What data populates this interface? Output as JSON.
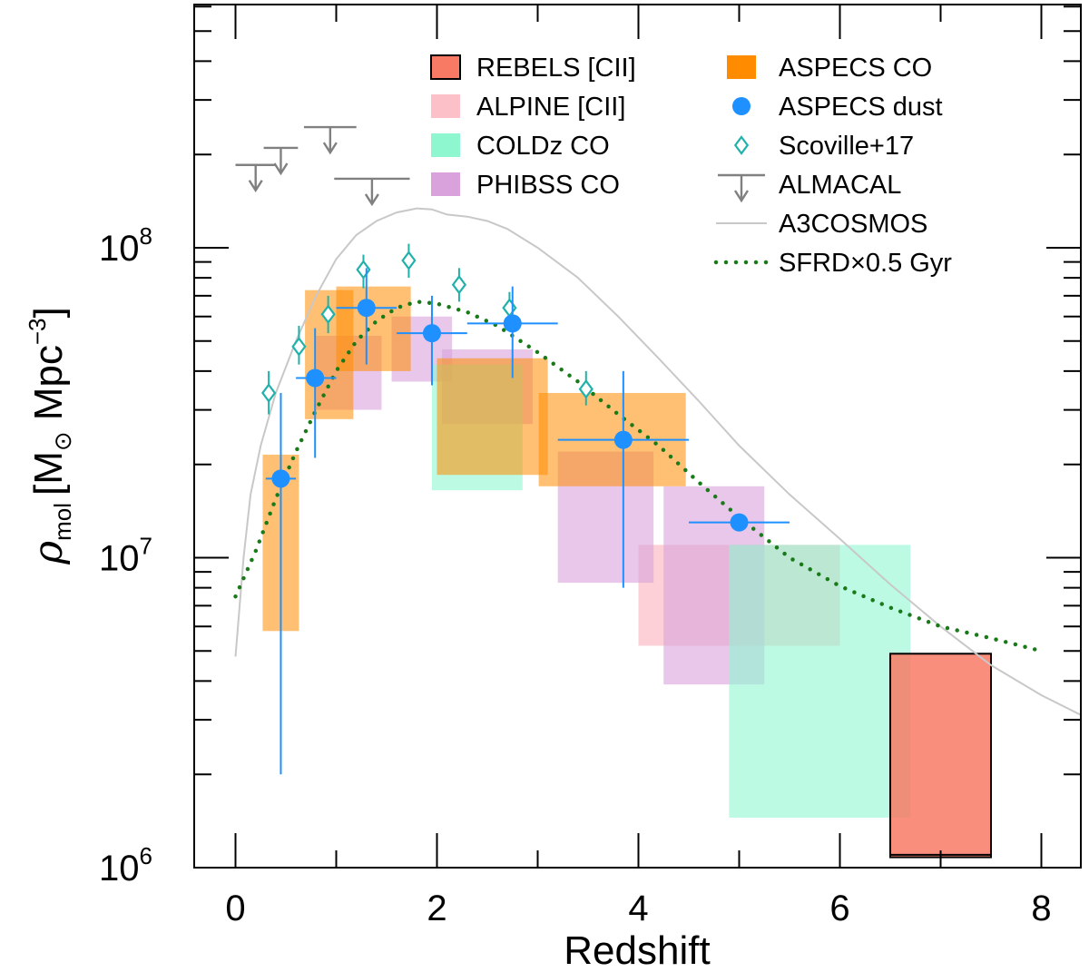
{
  "chart_data": {
    "type": "scatter",
    "title": "",
    "xlabel": "Redshift",
    "ylabel": "ρ_mol [M⊙ Mpc⁻³]",
    "ylabel_parts": {
      "rho": "ρ",
      "rho_sub": "mol",
      "bracket_open": "[M",
      "sun": "⊙",
      "mpc": "Mpc",
      "exp": "−3",
      "bracket_close": "]"
    },
    "x_scale": "linear",
    "y_scale": "log",
    "xlim": [
      -0.5,
      8.4
    ],
    "ylim": [
      1000000,
      700000000
    ],
    "x_ticks": [
      0,
      2,
      4,
      6,
      8
    ],
    "x_tick_labels": [
      "0",
      "2",
      "4",
      "6",
      "8"
    ],
    "y_ticks": [
      1000000,
      10000000,
      100000000
    ],
    "y_tick_labels": [
      {
        "base": "10",
        "exp": "6"
      },
      {
        "base": "10",
        "exp": "7"
      },
      {
        "base": "10",
        "exp": "8"
      }
    ],
    "legend": [
      {
        "label": "REBELS [CII]",
        "marker": "rect",
        "color": "#f87a65",
        "edge": "#000000"
      },
      {
        "label": "ALPINE [CII]",
        "marker": "rect",
        "color": "#fbc0c8"
      },
      {
        "label": "COLDz CO",
        "marker": "rect",
        "color": "#8ff7d0"
      },
      {
        "label": "PHIBSS CO",
        "marker": "rect",
        "color": "#d9a2dc"
      },
      {
        "label": "ASPECS CO",
        "marker": "rect",
        "color": "#ff8c00"
      },
      {
        "label": "ASPECS dust",
        "marker": "circle",
        "color": "#1e90ff"
      },
      {
        "label": "Scoville+17",
        "marker": "diamond",
        "color": "#20b2aa"
      },
      {
        "label": "ALMACAL",
        "marker": "upper-limit",
        "color": "#808080"
      },
      {
        "label": "A3COSMOS",
        "marker": "line",
        "color": "#c8c8c8"
      },
      {
        "label": "SFRD×0.5 Gyr",
        "marker": "dotted",
        "color": "#1a7a1a"
      }
    ],
    "series": [
      {
        "name": "ALPINE [CII]",
        "kind": "boxes",
        "color": "#fbc0c8",
        "opacity": 0.75,
        "boxes": [
          {
            "x": [
              4.0,
              6.0
            ],
            "y": [
              5200000,
              11000000
            ]
          }
        ]
      },
      {
        "name": "PHIBSS CO",
        "kind": "boxes",
        "color": "#d9a2dc",
        "opacity": 0.6,
        "boxes": [
          {
            "x": [
              0.8,
              1.45
            ],
            "y": [
              30000000,
              52000000
            ]
          },
          {
            "x": [
              1.55,
              2.15
            ],
            "y": [
              37000000,
              60000000
            ]
          },
          {
            "x": [
              2.05,
              2.95
            ],
            "y": [
              27000000,
              47000000
            ]
          },
          {
            "x": [
              3.2,
              4.15
            ],
            "y": [
              8300000,
              22000000
            ]
          },
          {
            "x": [
              4.25,
              5.25
            ],
            "y": [
              3900000,
              17000000
            ]
          }
        ]
      },
      {
        "name": "COLDz CO",
        "kind": "boxes",
        "color": "#8ff7d0",
        "opacity": 0.6,
        "boxes": [
          {
            "x": [
              1.95,
              2.85
            ],
            "y": [
              16500000,
              42000000
            ]
          },
          {
            "x": [
              4.9,
              6.7
            ],
            "y": [
              1450000,
              11000000
            ]
          }
        ]
      },
      {
        "name": "ASPECS CO",
        "kind": "boxes",
        "color": "#ff8c00",
        "opacity": 0.55,
        "boxes": [
          {
            "x": [
              0.27,
              0.63
            ],
            "y": [
              5800000,
              21500000
            ]
          },
          {
            "x": [
              0.69,
              1.17
            ],
            "y": [
              28000000,
              73000000
            ]
          },
          {
            "x": [
              1.0,
              1.74
            ],
            "y": [
              40000000,
              75000000
            ]
          },
          {
            "x": [
              2.0,
              3.1
            ],
            "y": [
              18500000,
              44000000
            ]
          },
          {
            "x": [
              3.01,
              4.47
            ],
            "y": [
              17000000,
              34000000
            ]
          }
        ]
      },
      {
        "name": "REBELS [CII]",
        "kind": "boxes",
        "color": "#f87a65",
        "opacity": 0.85,
        "edge": "#000000",
        "boxes": [
          {
            "x": [
              6.5,
              7.5
            ],
            "y": [
              1080000,
              4900000
            ],
            "inner_line": 1100000
          }
        ]
      },
      {
        "name": "A3COSMOS",
        "kind": "line",
        "color": "#c8c8c8",
        "x": [
          0.0,
          0.08,
          0.15,
          0.25,
          0.4,
          0.6,
          0.8,
          1.0,
          1.2,
          1.4,
          1.6,
          1.8,
          1.95,
          2.1,
          2.3,
          2.5,
          2.7,
          3.0,
          3.4,
          3.8,
          4.2,
          4.6,
          5.0,
          5.5,
          6.0,
          6.5,
          7.0,
          7.5,
          8.0,
          8.4
        ],
        "y": [
          4800000,
          10000000,
          16000000,
          23000000,
          34000000,
          50000000,
          70000000,
          92000000,
          110000000,
          122000000,
          130000000,
          134000000,
          133000000,
          128000000,
          126000000,
          122000000,
          115000000,
          100000000,
          80000000,
          60000000,
          44000000,
          32000000,
          23000000,
          16000000,
          11500000,
          8200000,
          6000000,
          4500000,
          3600000,
          3100000
        ]
      },
      {
        "name": "SFRD×0.5 Gyr",
        "kind": "dotted",
        "color": "#1a7a1a",
        "x": [
          0.0,
          0.2,
          0.4,
          0.6,
          0.8,
          1.0,
          1.2,
          1.4,
          1.6,
          1.8,
          2.0,
          2.3,
          2.6,
          3.0,
          3.4,
          3.8,
          4.2,
          4.6,
          5.0,
          5.5,
          6.0,
          6.5,
          7.0,
          7.5,
          8.0
        ],
        "y": [
          7500000,
          10500000,
          15500000,
          22000000,
          30000000,
          40000000,
          50000000,
          58000000,
          64000000,
          67000000,
          66000000,
          62000000,
          56000000,
          46000000,
          37000000,
          29000000,
          23000000,
          17500000,
          13500000,
          10000000,
          8100000,
          6900000,
          6000000,
          5500000,
          5000000
        ]
      },
      {
        "name": "Scoville+17",
        "kind": "points",
        "marker": "diamond",
        "color": "#20b2aa",
        "points": [
          {
            "x": 0.33,
            "y": 34000000,
            "ylo": 29000000,
            "yhi": 40000000
          },
          {
            "x": 0.63,
            "y": 48000000,
            "ylo": 42000000,
            "yhi": 56000000
          },
          {
            "x": 0.92,
            "y": 61000000,
            "ylo": 53000000,
            "yhi": 70000000
          },
          {
            "x": 1.27,
            "y": 85000000,
            "ylo": 74000000,
            "yhi": 95000000
          },
          {
            "x": 1.72,
            "y": 91000000,
            "ylo": 80000000,
            "yhi": 103000000
          },
          {
            "x": 2.22,
            "y": 76000000,
            "ylo": 67000000,
            "yhi": 86000000
          },
          {
            "x": 2.72,
            "y": 64000000,
            "ylo": 57000000,
            "yhi": 72000000
          },
          {
            "x": 3.48,
            "y": 35000000,
            "ylo": 31000000,
            "yhi": 40000000
          }
        ]
      },
      {
        "name": "ASPECS dust",
        "kind": "points",
        "marker": "circle",
        "color": "#1e90ff",
        "points": [
          {
            "x": 0.45,
            "y": 18000000,
            "xlo": 0.3,
            "xhi": 0.6,
            "ylo": 2000000,
            "yhi": 34000000
          },
          {
            "x": 0.79,
            "y": 38000000,
            "xlo": 0.6,
            "xhi": 1.0,
            "ylo": 21000000,
            "yhi": 55000000
          },
          {
            "x": 1.3,
            "y": 64000000,
            "xlo": 1.0,
            "xhi": 1.6,
            "ylo": 42000000,
            "yhi": 86000000
          },
          {
            "x": 1.95,
            "y": 53000000,
            "xlo": 1.6,
            "xhi": 2.3,
            "ylo": 36000000,
            "yhi": 70000000
          },
          {
            "x": 2.75,
            "y": 57000000,
            "xlo": 2.3,
            "xhi": 3.2,
            "ylo": 38000000,
            "yhi": 75000000
          },
          {
            "x": 3.85,
            "y": 24000000,
            "xlo": 3.2,
            "xhi": 4.5,
            "ylo": 8000000,
            "yhi": 40000000
          },
          {
            "x": 5.0,
            "y": 13000000,
            "xlo": 4.5,
            "xhi": 5.5,
            "ylo": 13000000,
            "yhi": 13000000
          }
        ]
      },
      {
        "name": "ALMACAL",
        "kind": "upper-limits",
        "color": "#808080",
        "limits": [
          {
            "x": 0.2,
            "xlo": 0.0,
            "xhi": 0.4,
            "y": 185000000
          },
          {
            "x": 0.44,
            "xlo": 0.28,
            "xhi": 0.62,
            "y": 210000000
          },
          {
            "x": 0.94,
            "xlo": 0.68,
            "xhi": 1.2,
            "y": 245000000
          },
          {
            "x": 1.36,
            "xlo": 0.98,
            "xhi": 1.73,
            "y": 167000000
          }
        ]
      }
    ]
  }
}
